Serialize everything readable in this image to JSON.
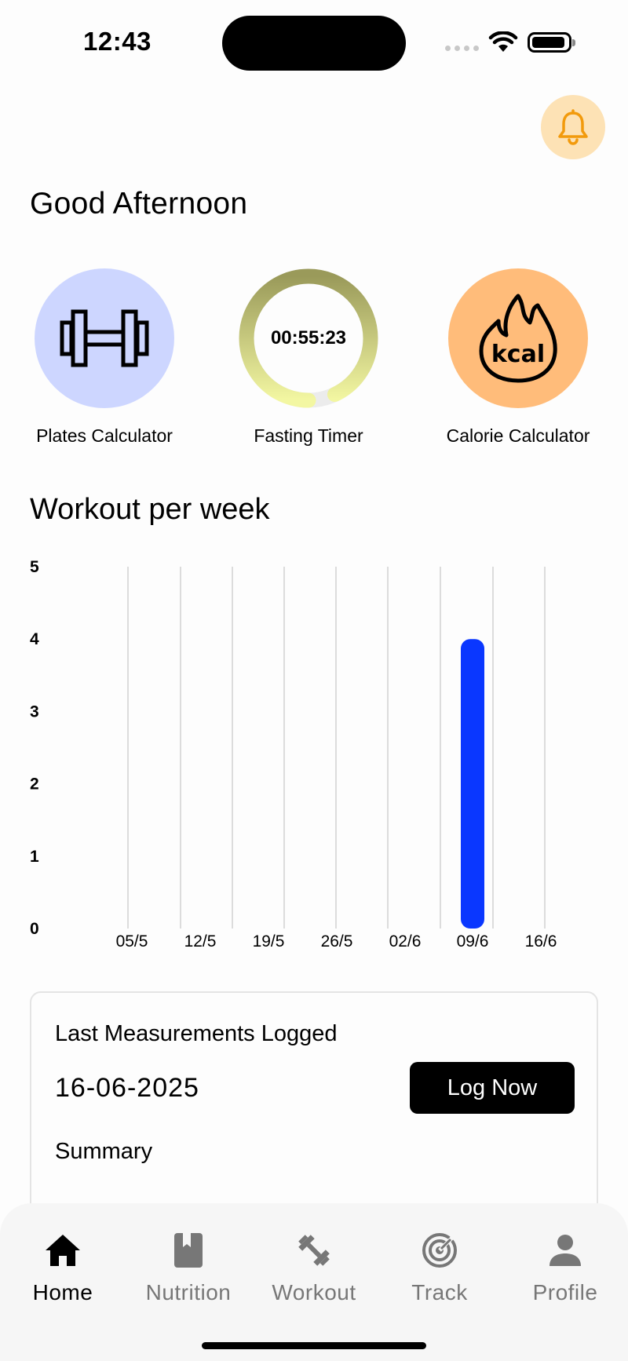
{
  "status": {
    "time": "12:43"
  },
  "greeting": "Good Afternoon",
  "tools": [
    {
      "label": "Plates Calculator",
      "icon": "dumbbell-icon",
      "color": "#cdd6ff"
    },
    {
      "label": "Fasting Timer",
      "icon": "timer-ring",
      "timer": "00:55:23",
      "progress": 0.93
    },
    {
      "label": "Calorie Calculator",
      "icon": "kcal-flame-icon",
      "color": "#ffbc7a",
      "icon_text": "kcal"
    }
  ],
  "workout_section": {
    "title": "Workout per week"
  },
  "chart_data": {
    "type": "bar",
    "categories": [
      "05/5",
      "12/5",
      "19/5",
      "26/5",
      "02/6",
      "09/6",
      "16/6"
    ],
    "values": [
      0,
      0,
      0,
      0,
      0,
      4,
      0
    ],
    "ylim": [
      0,
      5
    ],
    "yticks": [
      "0",
      "1",
      "2",
      "3",
      "4",
      "5"
    ],
    "grid": "vertical",
    "bar_color": "#0a37ff"
  },
  "measurements": {
    "title": "Last Measurements Logged",
    "date": "16-06-2025",
    "button": "Log Now",
    "summary": "Summary"
  },
  "nav": [
    {
      "label": "Home",
      "icon": "home-icon",
      "active": true
    },
    {
      "label": "Nutrition",
      "icon": "book-icon",
      "active": false
    },
    {
      "label": "Workout",
      "icon": "dumbbell-icon",
      "active": false
    },
    {
      "label": "Track",
      "icon": "target-icon",
      "active": false
    },
    {
      "label": "Profile",
      "icon": "person-icon",
      "active": false
    }
  ]
}
